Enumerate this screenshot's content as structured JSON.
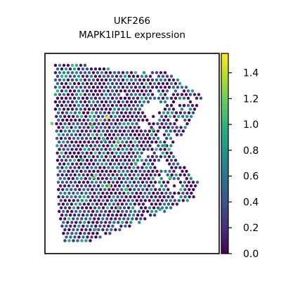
{
  "chart_data": {
    "type": "scatter",
    "subtype": "spatial-spot-expression",
    "title": "UKF266",
    "subtitle": "MAPK1IP1L expression",
    "xlabel": "",
    "ylabel": "",
    "grid": false,
    "colormap": "viridis",
    "colorbar": {
      "vmin": 0.0,
      "vmax": 1.55,
      "ticks": [
        0.0,
        0.2,
        0.4,
        0.6,
        0.8,
        1.0,
        1.2,
        1.4
      ],
      "tick_labels": [
        "0.0",
        "0.2",
        "0.4",
        "0.6",
        "0.8",
        "1.0",
        "1.2",
        "1.4"
      ]
    },
    "summary": {
      "dominant_value": 0.0,
      "typical_range": [
        0.0,
        1.0
      ],
      "max_observed": 1.5,
      "high_expression_spots": [
        {
          "x": 0.04,
          "y": 0.65,
          "value": 1.2
        },
        {
          "x": 0.27,
          "y": 0.64,
          "value": 1.2
        },
        {
          "x": 0.36,
          "y": 0.68,
          "value": 1.5
        },
        {
          "x": 0.34,
          "y": 0.57,
          "value": 1.1
        },
        {
          "x": 0.42,
          "y": 0.56,
          "value": 1.2
        },
        {
          "x": 0.28,
          "y": 0.38,
          "value": 1.1
        },
        {
          "x": 0.37,
          "y": 0.34,
          "value": 1.3
        },
        {
          "x": 0.47,
          "y": 0.32,
          "value": 1.1
        },
        {
          "x": 0.42,
          "y": 0.23,
          "value": 1.2
        },
        {
          "x": 0.62,
          "y": 0.62,
          "value": 1.1
        },
        {
          "x": 0.69,
          "y": 0.54,
          "value": 1.0
        },
        {
          "x": 0.72,
          "y": 0.38,
          "value": 1.1
        },
        {
          "x": 0.29,
          "y": 0.12,
          "value": 1.0
        },
        {
          "x": 0.21,
          "y": 0.47,
          "value": 1.0
        },
        {
          "x": 0.52,
          "y": 0.45,
          "value": 1.0
        },
        {
          "x": 0.66,
          "y": 0.22,
          "value": 1.0
        }
      ]
    }
  }
}
